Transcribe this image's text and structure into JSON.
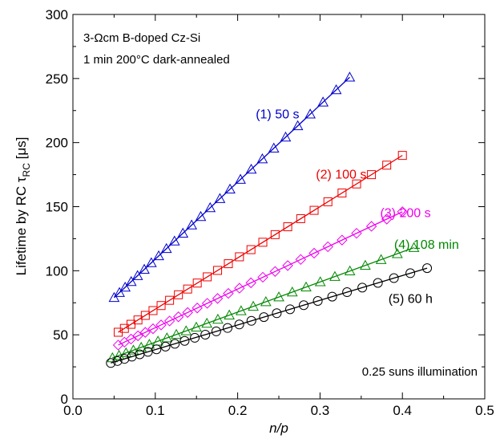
{
  "chart_data": {
    "type": "scatter",
    "xlabel": "n/p",
    "ylabel_main": "Lifetime by RC τ",
    "ylabel_sub": "RC",
    "ylabel_unit": " [μs]",
    "xlim": [
      0.0,
      0.5
    ],
    "ylim": [
      0,
      300
    ],
    "xticks": [
      0.0,
      0.1,
      0.2,
      0.3,
      0.4,
      0.5
    ],
    "xtick_labels": [
      "0.0",
      "0.1",
      "0.2",
      "0.3",
      "0.4",
      "0.5"
    ],
    "yticks": [
      0,
      50,
      100,
      150,
      200,
      250,
      300
    ],
    "ytick_labels": [
      "0",
      "50",
      "100",
      "150",
      "200",
      "250",
      "300"
    ],
    "grid": false,
    "annotations": {
      "top_left_1": "3-Ωcm B-doped Cz-Si",
      "top_left_2": "1 min 200°C dark-annealed",
      "bottom_right": "0.25 suns illumination"
    },
    "series": [
      {
        "label": "(1) 50 s",
        "color": "#0000cc",
        "marker": "triangle",
        "x_start": 0.05,
        "x_end": 0.336,
        "y_start": 79,
        "y_end": 251,
        "n_points": 26,
        "label_x": 0.222,
        "label_y": 219
      },
      {
        "label": "(2) 100 s",
        "color": "#ee0000",
        "marker": "square",
        "x_start": 0.055,
        "x_end": 0.4,
        "y_start": 52,
        "y_end": 190,
        "n_points": 27,
        "label_x": 0.295,
        "label_y": 172
      },
      {
        "label": "(3) 200 s",
        "color": "#ee00ee",
        "marker": "diamond",
        "x_start": 0.055,
        "x_end": 0.4,
        "y_start": 42,
        "y_end": 146,
        "n_points": 27,
        "label_x": 0.373,
        "label_y": 142
      },
      {
        "label": "(4) 108 min",
        "color": "#008800",
        "marker": "triangle",
        "x_start": 0.048,
        "x_end": 0.414,
        "y_start": 32,
        "y_end": 118,
        "n_points": 27,
        "label_x": 0.39,
        "label_y": 117
      },
      {
        "label": "(5) 60 h",
        "color": "#000000",
        "marker": "circle",
        "x_start": 0.046,
        "x_end": 0.43,
        "y_start": 28,
        "y_end": 102,
        "n_points": 28,
        "label_x": 0.383,
        "label_y": 75
      }
    ]
  }
}
